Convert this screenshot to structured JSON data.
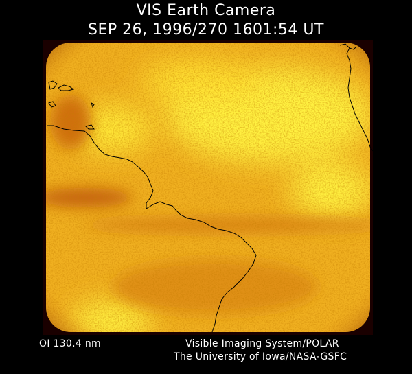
{
  "header": {
    "title": "VIS Earth Camera",
    "timestamp": "SEP 26, 1996/270 1601:54 UT"
  },
  "footer": {
    "filter": "OI  130.4 nm",
    "instrument": "Visible Imaging System/POLAR",
    "affiliation": "The University of Iowa/NASA-GSFC"
  },
  "image": {
    "colormap": [
      "#3a0000",
      "#a04000",
      "#e08a10",
      "#f5c020",
      "#fff040"
    ],
    "coastline_color": "#000000"
  }
}
